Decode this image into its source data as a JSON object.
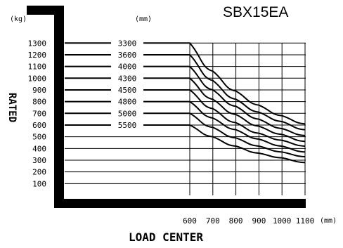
{
  "model": "SBX15EA",
  "chart_data": {
    "type": "line",
    "title": "SBX15EA",
    "ylabel": "RATED",
    "xlabel": "LOAD CENTER",
    "y_unit": "(kg)",
    "x_unit": "(mm)",
    "legend_unit": "(mm)",
    "y_ticks": [
      1300,
      1200,
      1100,
      1000,
      900,
      800,
      700,
      600,
      500,
      400,
      300,
      200,
      100
    ],
    "x_ticks": [
      600,
      700,
      800,
      900,
      1000,
      1100
    ],
    "ylim": [
      0,
      1400
    ],
    "xlim": [
      600,
      1100
    ],
    "grid": true,
    "series": [
      {
        "name": "3300",
        "x": [
          600,
          700,
          800,
          900,
          1000,
          1100
        ],
        "values": [
          1300,
          1060,
          890,
          770,
          680,
          610
        ]
      },
      {
        "name": "3600",
        "x": [
          600,
          700,
          800,
          900,
          1000,
          1100
        ],
        "values": [
          1200,
          980,
          820,
          710,
          630,
          560
        ]
      },
      {
        "name": "4000",
        "x": [
          600,
          700,
          800,
          900,
          1000,
          1100
        ],
        "values": [
          1100,
          900,
          760,
          650,
          570,
          510
        ]
      },
      {
        "name": "4300",
        "x": [
          600,
          700,
          800,
          900,
          1000,
          1100
        ],
        "values": [
          1000,
          820,
          690,
          590,
          520,
          460
        ]
      },
      {
        "name": "4500",
        "x": [
          600,
          700,
          800,
          900,
          1000,
          1100
        ],
        "values": [
          900,
          740,
          620,
          530,
          470,
          420
        ]
      },
      {
        "name": "4800",
        "x": [
          600,
          700,
          800,
          900,
          1000,
          1100
        ],
        "values": [
          800,
          660,
          560,
          480,
          420,
          370
        ]
      },
      {
        "name": "5000",
        "x": [
          600,
          700,
          800,
          900,
          1000,
          1100
        ],
        "values": [
          700,
          580,
          490,
          420,
          370,
          330
        ]
      },
      {
        "name": "5500",
        "x": [
          600,
          700,
          800,
          900,
          1000,
          1100
        ],
        "values": [
          600,
          500,
          420,
          360,
          320,
          280
        ]
      }
    ]
  }
}
